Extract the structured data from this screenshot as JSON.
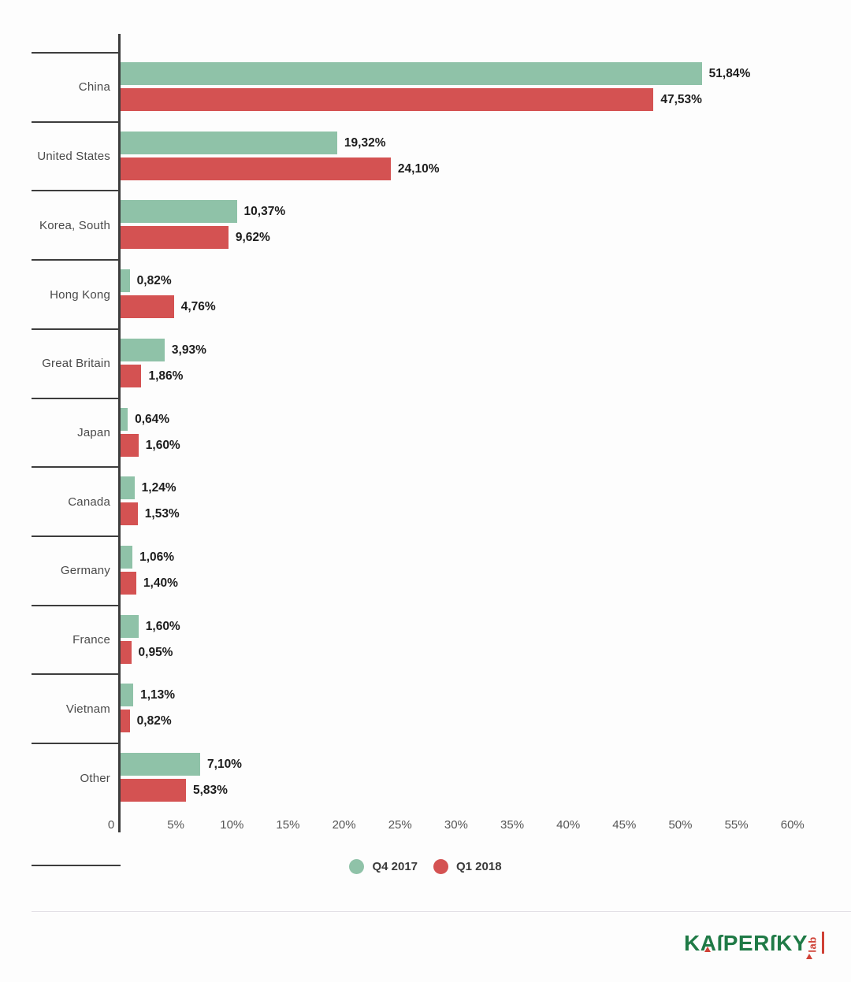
{
  "chart_data": {
    "type": "bar",
    "orientation": "horizontal",
    "title": "",
    "xlabel": "",
    "ylabel": "",
    "xlim": [
      0,
      61
    ],
    "grid": false,
    "legend_position": "bottom",
    "categories": [
      "China",
      "United States",
      "Korea, South",
      "Hong Kong",
      "Great Britain",
      "Japan",
      "Canada",
      "Germany",
      "France",
      "Vietnam",
      "Other"
    ],
    "series": [
      {
        "name": "Q4 2017",
        "color": "#8fc2a8",
        "values": [
          51.84,
          19.32,
          10.37,
          0.82,
          3.93,
          0.64,
          1.24,
          1.06,
          1.6,
          1.13,
          7.1
        ],
        "labels": [
          "51,84%",
          "19,32%",
          "10,37%",
          "0,82%",
          "3,93%",
          "0,64%",
          "1,24%",
          "1,06%",
          "1,60%",
          "1,13%",
          "7,10%"
        ]
      },
      {
        "name": "Q1 2018",
        "color": "#d45252",
        "values": [
          47.53,
          24.1,
          9.62,
          4.76,
          1.86,
          1.6,
          1.53,
          1.4,
          0.95,
          0.82,
          5.83
        ],
        "labels": [
          "47,53%",
          "24,10%",
          "9,62%",
          "4,76%",
          "1,86%",
          "1,60%",
          "1,53%",
          "1,40%",
          "0,95%",
          "0,82%",
          "5,83%"
        ]
      }
    ],
    "x_ticks": [
      {
        "value": 0,
        "label": "0"
      },
      {
        "value": 5,
        "label": "5%"
      },
      {
        "value": 10,
        "label": "10%"
      },
      {
        "value": 15,
        "label": "15%"
      },
      {
        "value": 20,
        "label": "20%"
      },
      {
        "value": 25,
        "label": "25%"
      },
      {
        "value": 30,
        "label": "30%"
      },
      {
        "value": 35,
        "label": "35%"
      },
      {
        "value": 40,
        "label": "40%"
      },
      {
        "value": 45,
        "label": "45%"
      },
      {
        "value": 50,
        "label": "50%"
      },
      {
        "value": 55,
        "label": "55%"
      },
      {
        "value": 60,
        "label": "60%"
      }
    ]
  },
  "legend": {
    "items": [
      {
        "label": "Q4 2017",
        "color": "#8fc2a8"
      },
      {
        "label": "Q1 2018",
        "color": "#d45252"
      }
    ]
  },
  "footer": {
    "logo_wordmark": "KAſPERſKY",
    "logo_sub": "lab",
    "logo_green": "#1f7a46",
    "logo_red": "#cf4136"
  }
}
